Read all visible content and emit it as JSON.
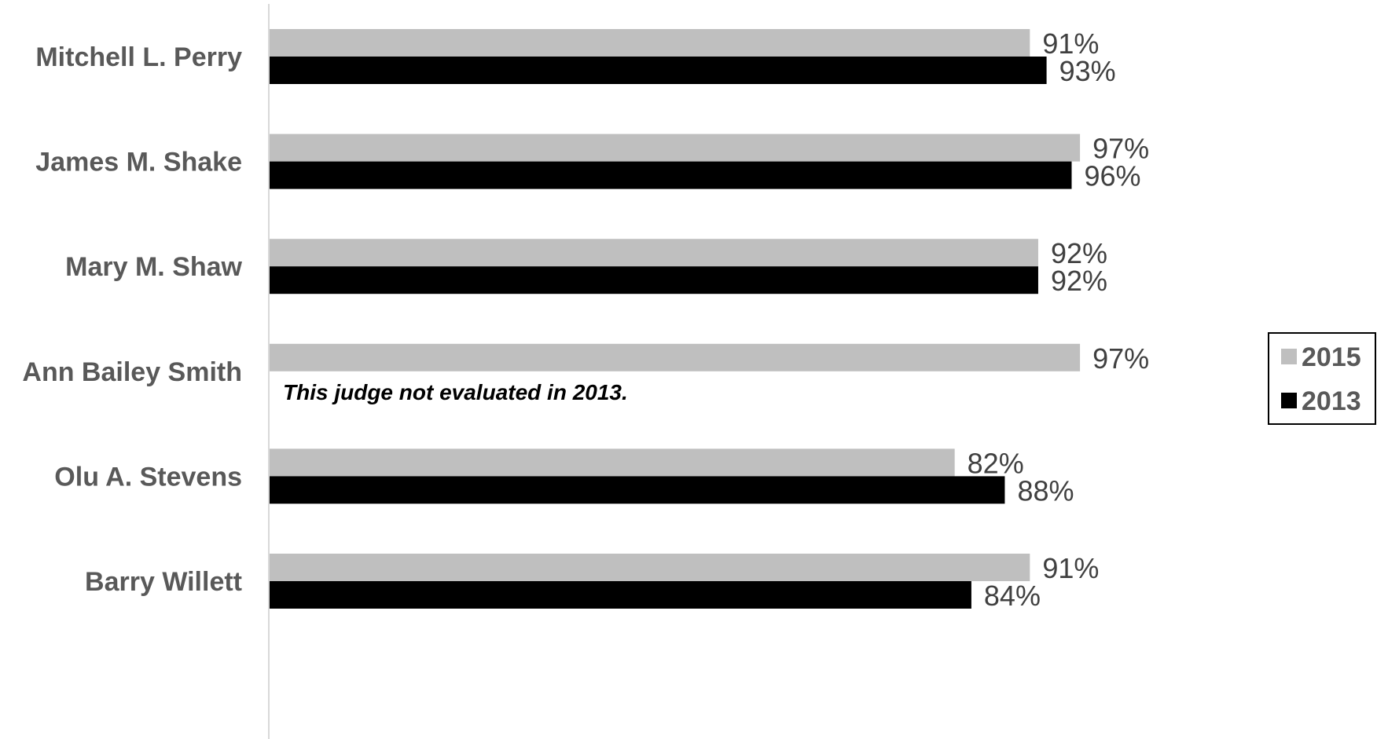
{
  "chart_data": {
    "type": "bar",
    "orientation": "horizontal",
    "categories": [
      "Mitchell L. Perry",
      "James M. Shake",
      "Mary M. Shaw",
      "Ann Bailey Smith",
      "Olu A. Stevens",
      "Barry Willett"
    ],
    "series": [
      {
        "name": "2015",
        "color": "#bfbfbf",
        "values": [
          91,
          97,
          92,
          97,
          82,
          91
        ]
      },
      {
        "name": "2013",
        "color": "#000000",
        "values": [
          93,
          96,
          92,
          null,
          88,
          84
        ]
      }
    ],
    "value_format": "{v}%",
    "xlim": [
      0,
      100
    ],
    "grid": false,
    "legend": {
      "position": "right",
      "entries": [
        "2015",
        "2013"
      ]
    },
    "annotations": [
      {
        "category": "Ann Bailey Smith",
        "text": "This judge not evaluated in 2013."
      }
    ]
  }
}
